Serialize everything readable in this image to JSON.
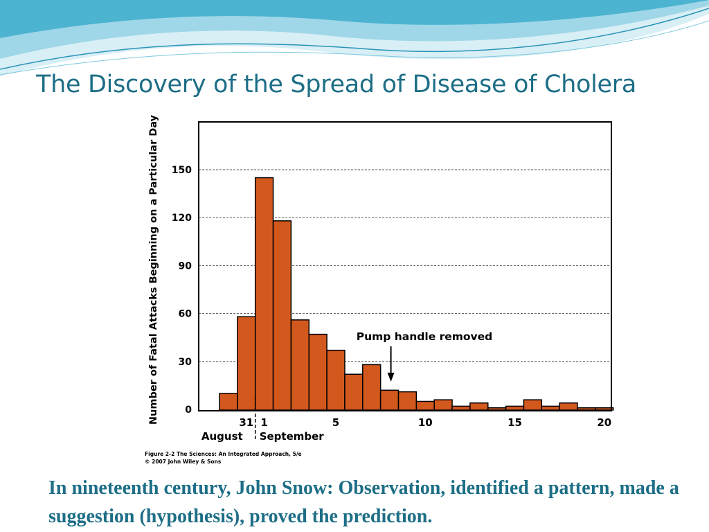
{
  "slide": {
    "title": "The Discovery of the Spread of Disease of Cholera",
    "caption": "In nineteenth century, John Snow: Observation, identified a pattern, made a suggestion (hypothesis), proved the prediction."
  },
  "colors": {
    "title": "#1d6e86",
    "bar_fill": "#d2581d",
    "bar_stroke": "#000000",
    "wave_dark": "#3fa9c9",
    "wave_light": "#bfe6f1"
  },
  "chart_data": {
    "type": "bar",
    "ylabel": "Number of Fatal Attacks Beginning on a Particular Day",
    "xlabel": "",
    "ylim": [
      0,
      180
    ],
    "yticks": [
      0,
      30,
      60,
      90,
      120,
      150
    ],
    "grid": "horizontal dashed",
    "x": [
      30,
      31,
      1,
      2,
      3,
      4,
      5,
      6,
      7,
      8,
      9,
      10,
      11,
      12,
      13,
      14,
      15,
      16,
      17,
      18,
      19,
      20
    ],
    "values": [
      10,
      58,
      145,
      118,
      56,
      47,
      37,
      22,
      28,
      12,
      11,
      5,
      6,
      2,
      4,
      1,
      2,
      6,
      2,
      4,
      1,
      1
    ],
    "xticks": [
      "31",
      "1",
      "5",
      "10",
      "15",
      "20"
    ],
    "month_labels": [
      "August",
      "September"
    ],
    "annotation": "Pump handle removed",
    "annotation_x": 8,
    "source_line1": "Figure 2-2  The Sciences: An Integrated Approach, 5/e",
    "source_line2": "© 2007 John Wiley & Sons"
  }
}
